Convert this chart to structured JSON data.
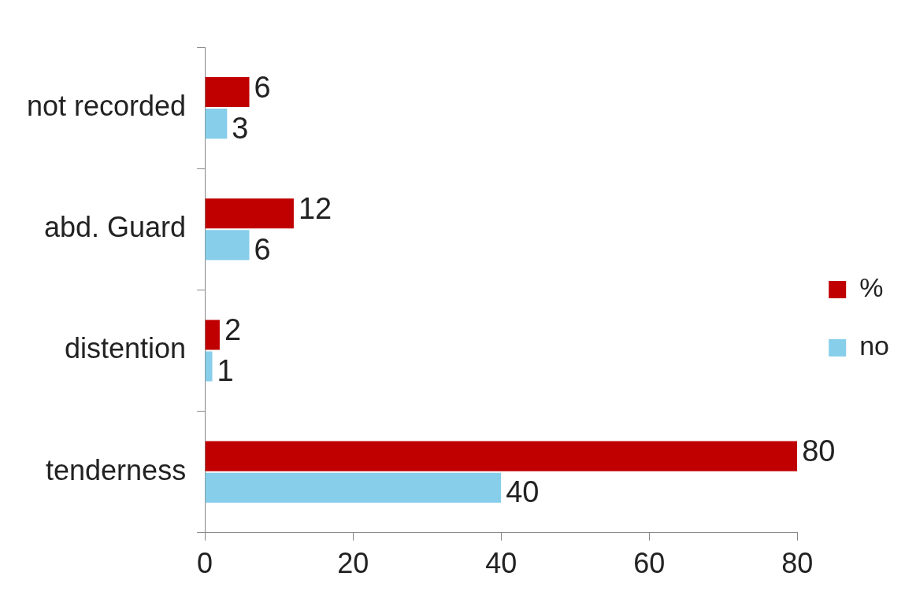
{
  "chart_data": {
    "type": "bar",
    "orientation": "horizontal",
    "categories": [
      "not recorded",
      "abd. Guard",
      "distention",
      "tenderness"
    ],
    "series": [
      {
        "name": "%",
        "color": "#c00000",
        "values": [
          6,
          12,
          2,
          80
        ]
      },
      {
        "name": "no",
        "color": "#87ceeb",
        "values": [
          3,
          6,
          1,
          40
        ]
      }
    ],
    "xlim": [
      0,
      80
    ],
    "xticks": [
      0,
      20,
      40,
      60,
      80
    ],
    "grid": false,
    "legend": "right",
    "data_labels": true
  }
}
